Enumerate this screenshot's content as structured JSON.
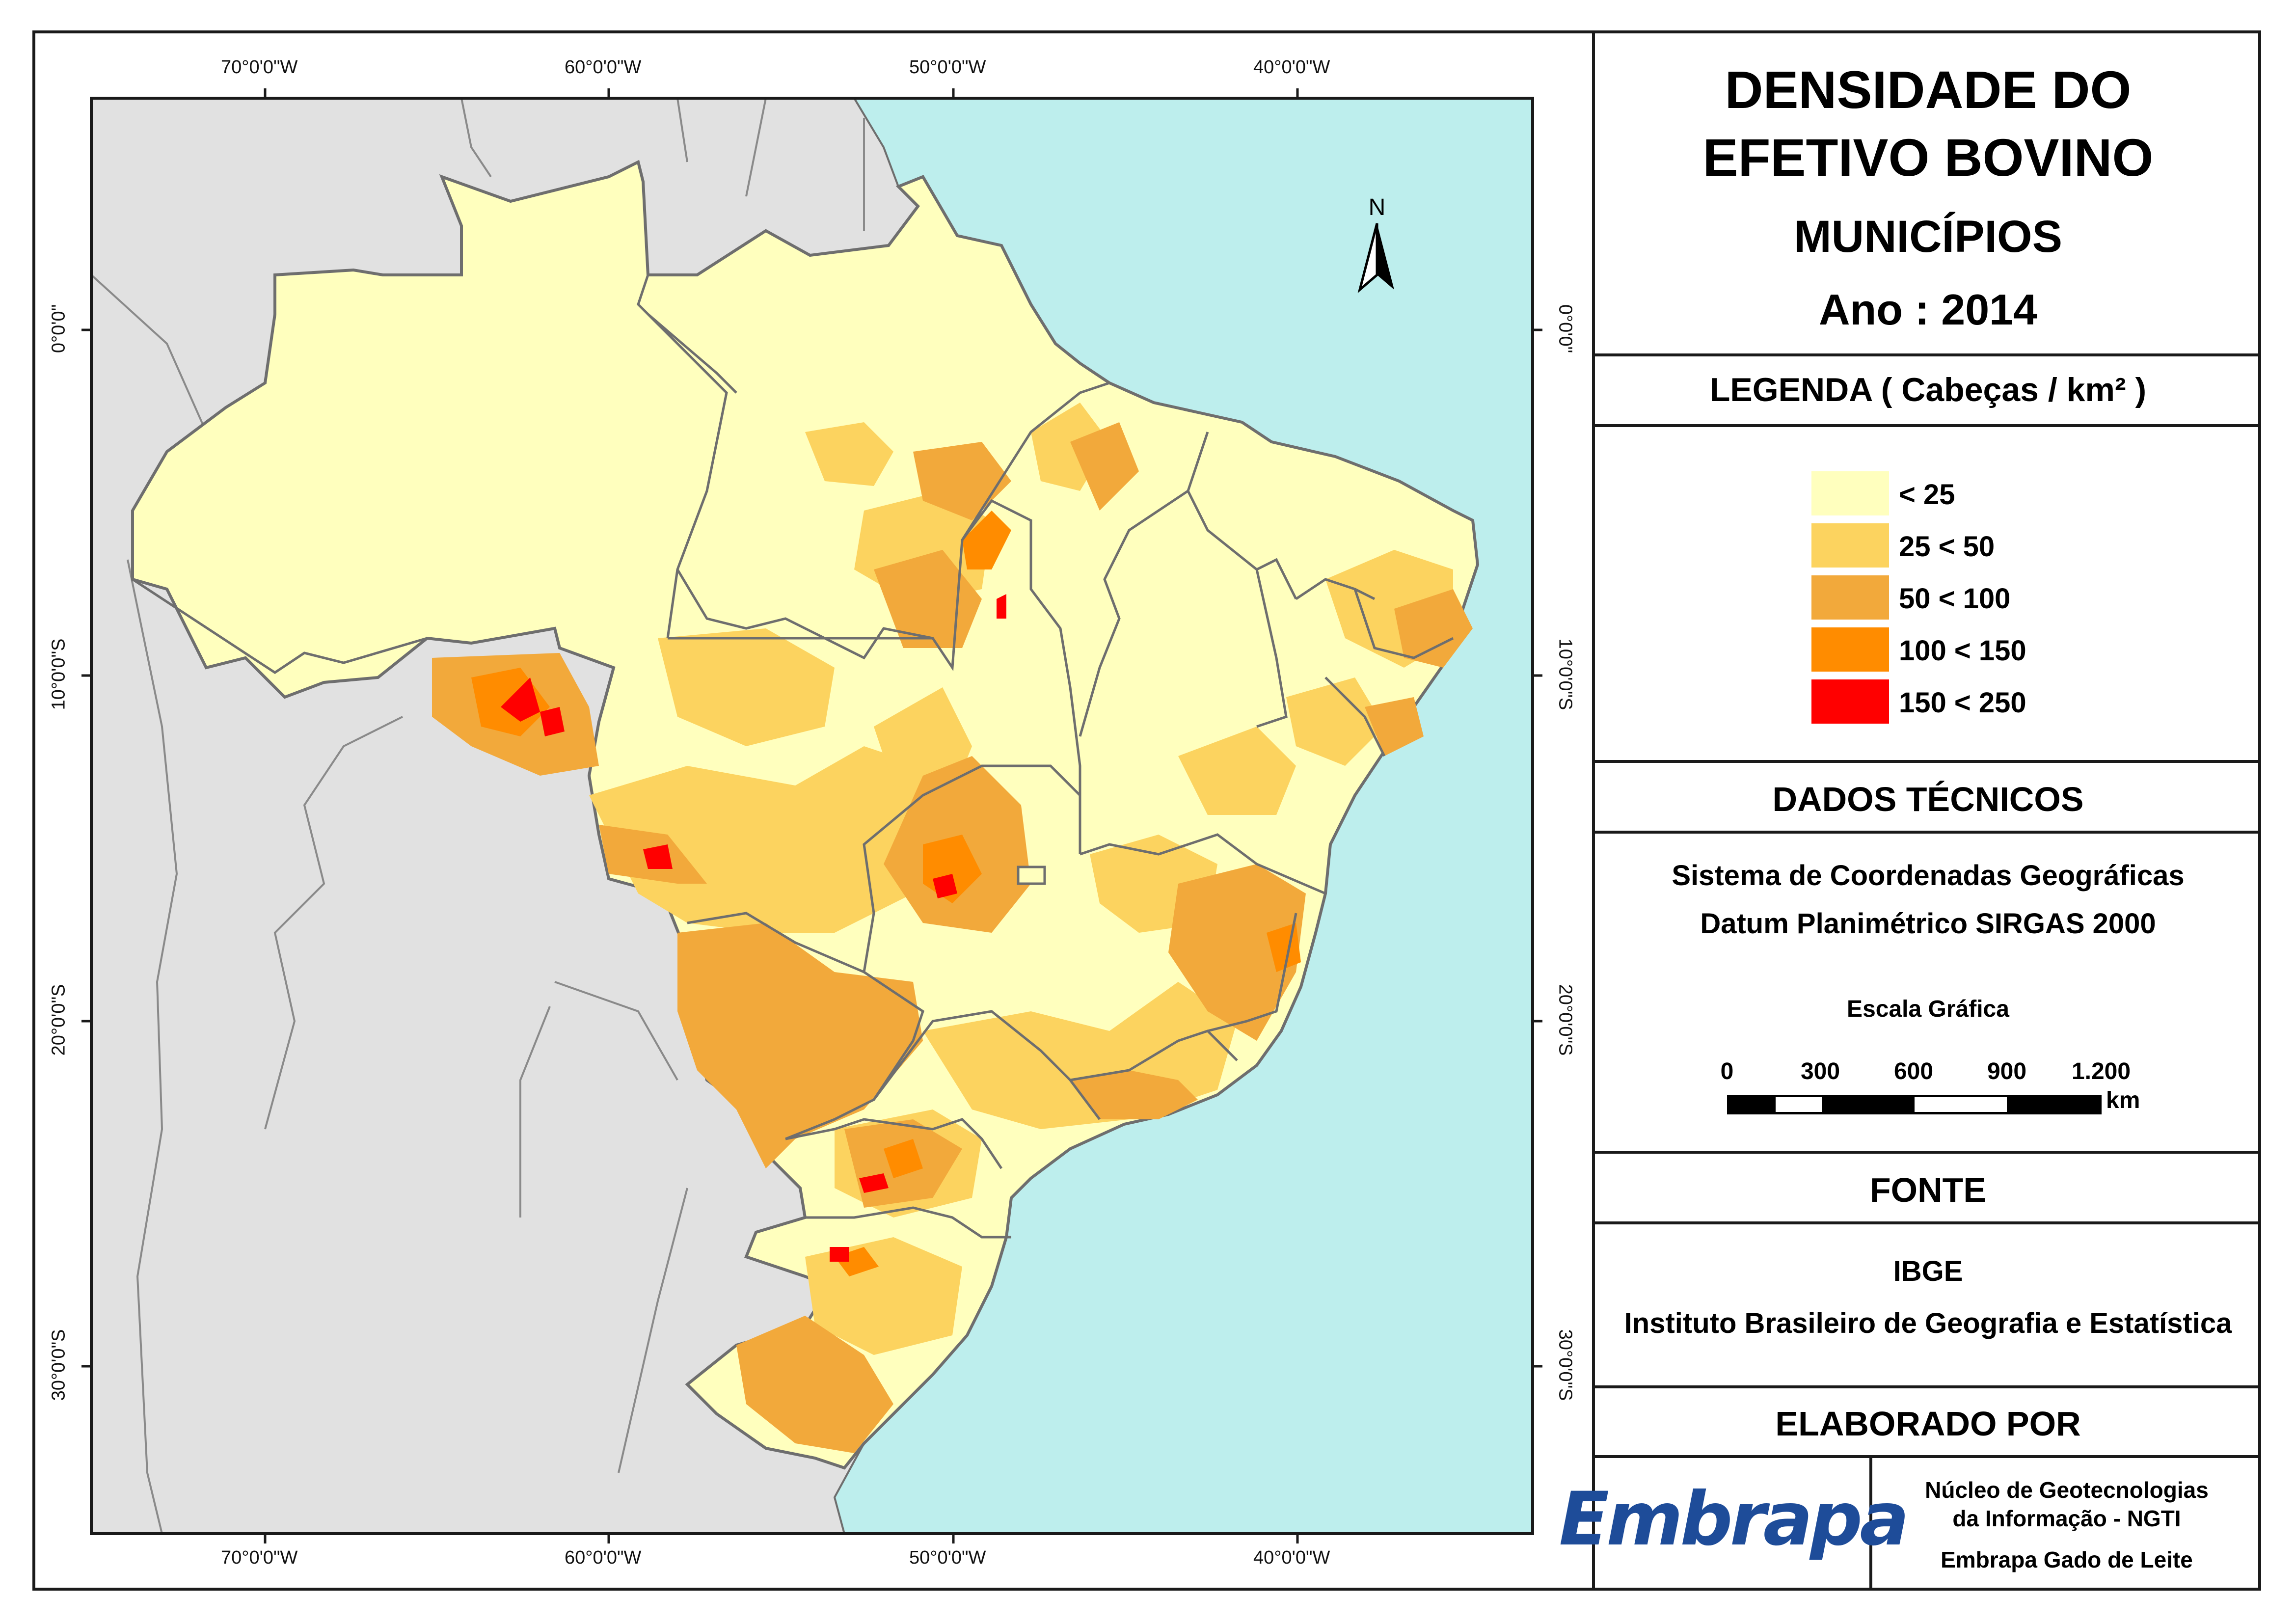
{
  "title": {
    "line1": "DENSIDADE DO",
    "line2": "EFETIVO BOVINO",
    "line3": "MUNICÍPIOS",
    "line4": "Ano : 2014"
  },
  "legend": {
    "header": "LEGENDA ( Cabeças / km² )",
    "classes": [
      {
        "label": "< 25",
        "color": "#ffffbe"
      },
      {
        "label": "25 < 50",
        "color": "#fcd35f"
      },
      {
        "label": "50 < 100",
        "color": "#f2a93b"
      },
      {
        "label": "100 < 150",
        "color": "#ff8c00"
      },
      {
        "label": "150 < 250",
        "color": "#ff0000"
      }
    ]
  },
  "technical": {
    "header": "DADOS TÉCNICOS",
    "coord_system": "Sistema de Coordenadas Geográficas",
    "datum": "Datum Planimétrico SIRGAS 2000",
    "scale_title": "Escala Gráfica",
    "scale_ticks": [
      "0",
      "300",
      "600",
      "900",
      "1.200"
    ],
    "scale_unit": "km"
  },
  "source": {
    "header": "FONTE",
    "org": "IBGE",
    "org_full": "Instituto Brasileiro de Geografia e Estatística"
  },
  "author": {
    "header": "ELABORADO POR",
    "logo_text": "Embrapa",
    "line1": "Núcleo de Geotecnologias",
    "line2": "da Informação - NGTI",
    "line3": "Embrapa Gado de Leite"
  },
  "map": {
    "north_label": "N",
    "lon_labels": [
      "70°0'0\"W",
      "60°0'0\"W",
      "50°0'0\"W",
      "40°0'0\"W"
    ],
    "lat_labels": [
      "0°0'0\"",
      "10°0'0\"S",
      "20°0'0\"S",
      "30°0'0\"S"
    ],
    "colors": {
      "ocean": "#bdeeed",
      "land_other": "#e1e1e1",
      "border": "#6e6e6e"
    }
  }
}
